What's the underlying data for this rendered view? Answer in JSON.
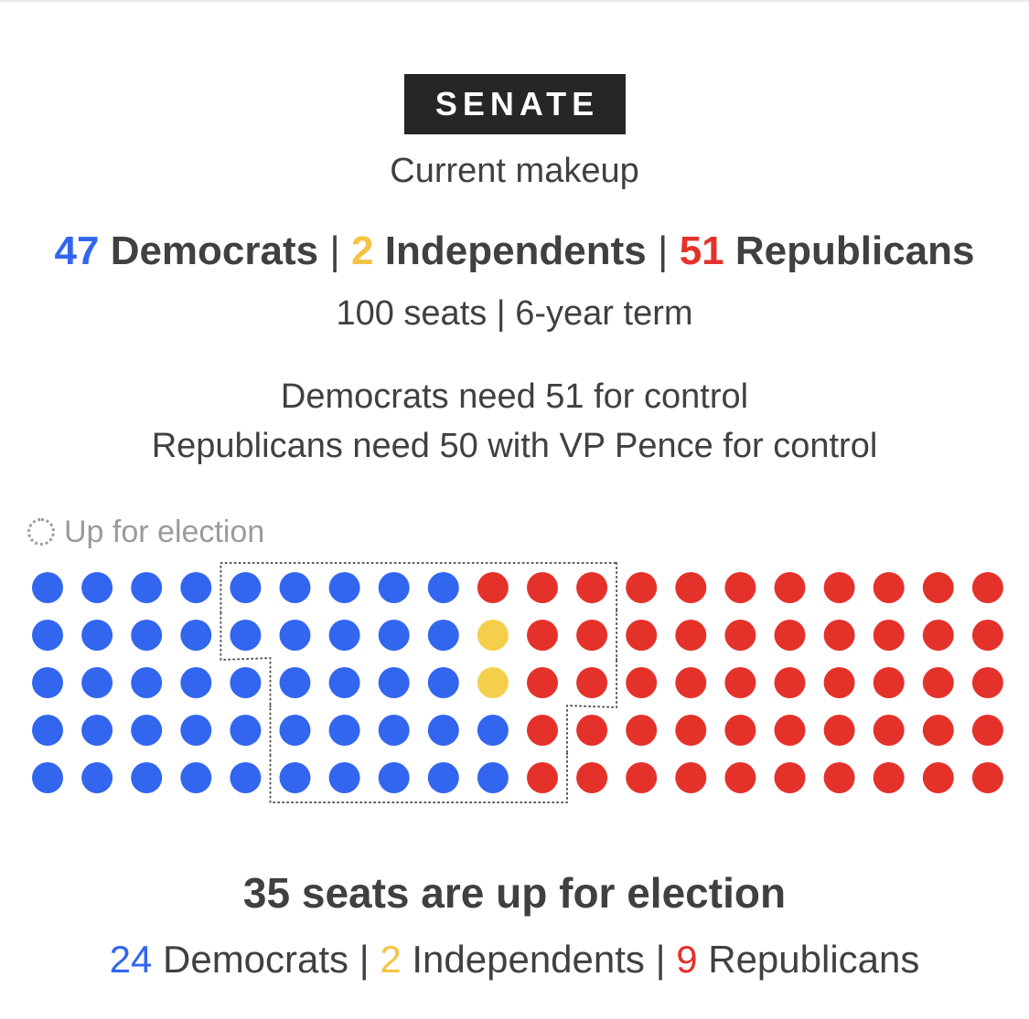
{
  "header": {
    "badge": "SENATE",
    "subtitle": "Current makeup"
  },
  "makeup": {
    "dem_count": "47",
    "dem_label": "Democrats",
    "ind_count": "2",
    "ind_label": "Independents",
    "rep_count": "51",
    "rep_label": "Republicans",
    "separator": "|"
  },
  "meta": "100 seats | 6-year term",
  "control": {
    "democrats": "Democrats need 51 for control",
    "republicans": "Republicans need 50 with VP Pence for control"
  },
  "legend": {
    "label": "Up for election"
  },
  "election": {
    "title": "35 seats are up for election",
    "dem_count": "24",
    "dem_label": "Democrats",
    "ind_count": "2",
    "ind_label": "Independents",
    "rep_count": "9",
    "rep_label": "Republicans",
    "separator": "|"
  },
  "colors": {
    "democrat": "#3366ee",
    "independent": "#f5cf4c",
    "republican": "#e4322b",
    "text": "#404040",
    "muted": "#9b9b9b",
    "badge_bg": "#262626"
  },
  "chart_data": {
    "type": "waffle",
    "title": "Senate current makeup",
    "rows": 5,
    "columns": 20,
    "seats": [
      [
        "D",
        "D",
        "D",
        "D",
        "D",
        "D",
        "D",
        "D",
        "D",
        "R",
        "R",
        "R",
        "R",
        "R",
        "R",
        "R",
        "R",
        "R",
        "R",
        "R"
      ],
      [
        "D",
        "D",
        "D",
        "D",
        "D",
        "D",
        "D",
        "D",
        "D",
        "I",
        "R",
        "R",
        "R",
        "R",
        "R",
        "R",
        "R",
        "R",
        "R",
        "R"
      ],
      [
        "D",
        "D",
        "D",
        "D",
        "D",
        "D",
        "D",
        "D",
        "D",
        "I",
        "R",
        "R",
        "R",
        "R",
        "R",
        "R",
        "R",
        "R",
        "R",
        "R"
      ],
      [
        "D",
        "D",
        "D",
        "D",
        "D",
        "D",
        "D",
        "D",
        "D",
        "D",
        "R",
        "R",
        "R",
        "R",
        "R",
        "R",
        "R",
        "R",
        "R",
        "R"
      ],
      [
        "D",
        "D",
        "D",
        "D",
        "D",
        "D",
        "D",
        "D",
        "D",
        "D",
        "R",
        "R",
        "R",
        "R",
        "R",
        "R",
        "R",
        "R",
        "R",
        "R"
      ]
    ],
    "up_for_election": [
      [
        "N",
        "N",
        "N",
        "N",
        "Y",
        "Y",
        "Y",
        "Y",
        "Y",
        "Y",
        "Y",
        "Y",
        "N",
        "N",
        "N",
        "N",
        "N",
        "N",
        "N",
        "N"
      ],
      [
        "N",
        "N",
        "N",
        "N",
        "Y",
        "Y",
        "Y",
        "Y",
        "Y",
        "Y",
        "Y",
        "Y",
        "N",
        "N",
        "N",
        "N",
        "N",
        "N",
        "N",
        "N"
      ],
      [
        "N",
        "N",
        "N",
        "N",
        "N",
        "Y",
        "Y",
        "Y",
        "Y",
        "Y",
        "Y",
        "Y",
        "N",
        "N",
        "N",
        "N",
        "N",
        "N",
        "N",
        "N"
      ],
      [
        "N",
        "N",
        "N",
        "N",
        "N",
        "Y",
        "Y",
        "Y",
        "Y",
        "Y",
        "Y",
        "N",
        "N",
        "N",
        "N",
        "N",
        "N",
        "N",
        "N",
        "N"
      ],
      [
        "N",
        "N",
        "N",
        "N",
        "N",
        "Y",
        "Y",
        "Y",
        "Y",
        "Y",
        "Y",
        "N",
        "N",
        "N",
        "N",
        "N",
        "N",
        "N",
        "N",
        "N"
      ]
    ],
    "totals": {
      "democrats": 47,
      "independents": 2,
      "republicans": 51,
      "seats": 100
    },
    "up_totals": {
      "democrats": 24,
      "independents": 2,
      "republicans": 9,
      "seats": 35
    }
  }
}
